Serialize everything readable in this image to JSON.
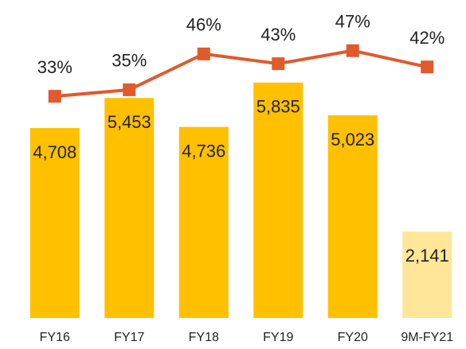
{
  "chart_data": {
    "type": "bar",
    "categories": [
      "FY16",
      "FY17",
      "FY18",
      "FY19",
      "FY20",
      "9M-FY21"
    ],
    "series": [
      {
        "type": "bar",
        "color": "#ffc000",
        "colors": [
          "#ffc000",
          "#ffc000",
          "#ffc000",
          "#ffc000",
          "#ffc000",
          "#ffe699"
        ],
        "values": [
          4708,
          5453,
          4736,
          5835,
          5023,
          2141
        ],
        "value_labels": [
          "4,708",
          "5,453",
          "4,736",
          "5,835",
          "5,023",
          "2,141"
        ]
      },
      {
        "type": "line",
        "axis": "y2",
        "color": "#e05a2b",
        "values": [
          33,
          35,
          46,
          43,
          47,
          42
        ],
        "value_labels": [
          "33%",
          "35%",
          "46%",
          "43%",
          "47%",
          "42%"
        ]
      }
    ],
    "ylim": [
      0,
      8000
    ],
    "y2lim": [
      -35,
      64
    ]
  }
}
